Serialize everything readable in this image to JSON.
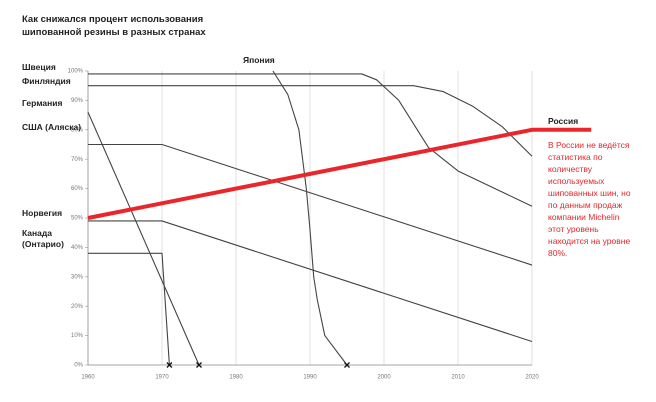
{
  "chart_data": {
    "type": "line",
    "title": "Как снижался процент использования шипованной резины в разных странах",
    "annotation": "В России не ведётся статистика по количеству используемых шипованных шин, но по данным продаж компании Michelin этот уровень находится на уровне 80%.",
    "xlim": [
      1960,
      2020
    ],
    "ylim": [
      0,
      100
    ],
    "xticks": [
      1960,
      1970,
      1980,
      1990,
      2000,
      2010,
      2020
    ],
    "yticks": [
      {
        "value": 0,
        "label": "0%"
      },
      {
        "value": 10,
        "label": "10%"
      },
      {
        "value": 20,
        "label": "20%"
      },
      {
        "value": 30,
        "label": "30%"
      },
      {
        "value": 40,
        "label": "40%"
      },
      {
        "value": 50,
        "label": "50%"
      },
      {
        "value": 60,
        "label": "60%"
      },
      {
        "value": 70,
        "label": "70%"
      },
      {
        "value": 80,
        "label": "80%"
      },
      {
        "value": 90,
        "label": "90%"
      },
      {
        "value": 100,
        "label": "100%"
      }
    ],
    "grid": true,
    "series": [
      {
        "name": "Швеция",
        "color": "#444444",
        "x": [
          1960,
          1997,
          1999,
          2002,
          2006,
          2010,
          2015,
          2020
        ],
        "values": [
          99,
          99,
          97,
          90,
          74,
          66,
          60,
          54
        ]
      },
      {
        "name": "Финляндия",
        "color": "#444444",
        "x": [
          1960,
          2004,
          2008,
          2012,
          2016,
          2020
        ],
        "values": [
          95,
          95,
          93,
          88,
          81,
          71
        ]
      },
      {
        "name": "Германия",
        "color": "#444444",
        "x": [
          1960,
          1975
        ],
        "values": [
          86,
          0
        ],
        "end_marker": true
      },
      {
        "name": "США (Аляска)",
        "color": "#444444",
        "x": [
          1960,
          1970,
          2020
        ],
        "values": [
          75,
          75,
          34
        ]
      },
      {
        "name": "Норвегия",
        "color": "#444444",
        "x": [
          1960,
          1970,
          2020
        ],
        "values": [
          49,
          49,
          8
        ]
      },
      {
        "name": "Канада (Онтарио)",
        "color": "#444444",
        "x": [
          1960,
          1970,
          1971
        ],
        "values": [
          38,
          38,
          0
        ],
        "end_marker": true
      },
      {
        "name": "Япония",
        "color": "#444444",
        "x": [
          1985,
          1987,
          1988.5,
          1989.5,
          1990,
          1990.5,
          1991,
          1992,
          1995
        ],
        "values": [
          100,
          92,
          80,
          60,
          46,
          30,
          22,
          10,
          0
        ],
        "end_marker": true
      },
      {
        "name": "Россия",
        "color": "#e8262b",
        "x": [
          1960,
          2020,
          2028
        ],
        "values": [
          50,
          80,
          80
        ]
      }
    ]
  }
}
